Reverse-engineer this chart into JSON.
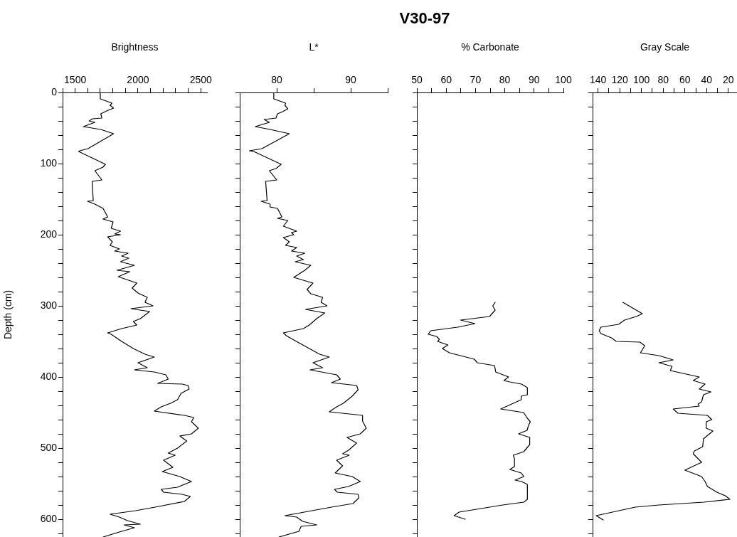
{
  "chart_data": [
    {
      "type": "line",
      "xlabel": "Brightness",
      "ylabel": "Depth (cm)",
      "xlim": [
        1400,
        2550
      ],
      "xticks": [
        {
          "value": 1400,
          "label": null
        },
        1500,
        {
          "value": 1600,
          "label": null
        },
        {
          "value": 1700,
          "label": null
        },
        {
          "value": 1800,
          "label": null
        },
        {
          "value": 1900,
          "label": null
        },
        2000,
        {
          "value": 2100,
          "label": null
        },
        {
          "value": 2200,
          "label": null
        },
        {
          "value": 2300,
          "label": null
        },
        {
          "value": 2400,
          "label": null
        },
        2500
      ],
      "ylim": [
        625,
        0
      ],
      "yticks": [
        0,
        {
          "value": 20,
          "label": null
        },
        {
          "value": 40,
          "label": null
        },
        {
          "value": 60,
          "label": null
        },
        {
          "value": 80,
          "label": null
        },
        100,
        {
          "value": 120,
          "label": null
        },
        {
          "value": 140,
          "label": null
        },
        {
          "value": 160,
          "label": null
        },
        {
          "value": 180,
          "label": null
        },
        200,
        {
          "value": 220,
          "label": null
        },
        {
          "value": 240,
          "label": null
        },
        {
          "value": 260,
          "label": null
        },
        {
          "value": 280,
          "label": null
        },
        300,
        {
          "value": 320,
          "label": null
        },
        {
          "value": 340,
          "label": null
        },
        {
          "value": 360,
          "label": null
        },
        {
          "value": 380,
          "label": null
        },
        400,
        {
          "value": 420,
          "label": null
        },
        {
          "value": 440,
          "label": null
        },
        {
          "value": 460,
          "label": null
        },
        {
          "value": 480,
          "label": null
        },
        500,
        {
          "value": 520,
          "label": null
        },
        {
          "value": 540,
          "label": null
        },
        {
          "value": 560,
          "label": null
        },
        {
          "value": 580,
          "label": null
        },
        600,
        {
          "value": 620,
          "label": null
        }
      ],
      "series": [
        {
          "color": "#000000",
          "x": [
            1700,
            1700,
            1793,
            1778,
            1806,
            1763,
            1704,
            1713,
            1639,
            1611,
            1657,
            1565,
            1704,
            1806,
            1602,
            1537,
            1528,
            1741,
            1722,
            1657,
            1713,
            1635,
            1644,
            1598,
            1657,
            1722,
            1759,
            1722,
            1802,
            1787,
            1861,
            1815,
            1861,
            1759,
            1796,
            1778,
            1852,
            1815,
            1922,
            1870,
            1926,
            1861,
            1972,
            1833,
            1935,
            1843,
            1991,
            1954,
            2000,
            2074,
            2056,
            2120,
            1944,
            2093,
            2019,
            1963,
            1991,
            1870,
            1759,
            1787,
            1870,
            1963,
            2056,
            2130,
            2000,
            2074,
            1972,
            2130,
            2222,
            2241,
            2157,
            2352,
            2398,
            2407,
            2343,
            2315,
            2259,
            2185,
            2130,
            2370,
            2444,
            2426,
            2481,
            2426,
            2333,
            2389,
            2315,
            2241,
            2296,
            2204,
            2278,
            2194,
            2333,
            2426,
            2315,
            2185,
            2204,
            2352,
            2417,
            2370,
            2167,
            1981,
            1778,
            1852,
            1917,
            2019,
            1889,
            1972,
            1870,
            1722
          ],
          "values": [
            1,
            9,
            15,
            18,
            22,
            25,
            30,
            36,
            37,
            40,
            42,
            48,
            52,
            58,
            79,
            82,
            83,
            101,
            105,
            110,
            123,
            125,
            152,
            153,
            157,
            163,
            175,
            178,
            182,
            191,
            195,
            199,
            200,
            203,
            210,
            215,
            220,
            223,
            226,
            230,
            233,
            238,
            243,
            250,
            252,
            259,
            268,
            275,
            282,
            288,
            295,
            300,
            304,
            308,
            318,
            322,
            327,
            332,
            338,
            340,
            350,
            360,
            368,
            372,
            380,
            387,
            390,
            393,
            397,
            403,
            409,
            410,
            412,
            417,
            423,
            432,
            437,
            442,
            448,
            454,
            457,
            463,
            472,
            480,
            483,
            490,
            500,
            507,
            510,
            517,
            527,
            533,
            540,
            547,
            555,
            558,
            562,
            565,
            568,
            575,
            582,
            588,
            593,
            597,
            602,
            607,
            608,
            612,
            617,
            625
          ]
        }
      ]
    },
    {
      "type": "line",
      "xlabel": "L*",
      "xlim": [
        75,
        95
      ],
      "xticks": [
        80,
        {
          "value": 85,
          "label": null
        },
        90,
        {
          "value": 95,
          "label": null
        }
      ],
      "ylim": [
        625,
        0
      ],
      "tick_labels": "x",
      "yticks": [
        0,
        {
          "value": 20,
          "label": null
        },
        {
          "value": 40,
          "label": null
        },
        {
          "value": 60,
          "label": null
        },
        {
          "value": 80,
          "label": null
        },
        100,
        {
          "value": 120,
          "label": null
        },
        {
          "value": 140,
          "label": null
        },
        {
          "value": 160,
          "label": null
        },
        {
          "value": 180,
          "label": null
        },
        200,
        {
          "value": 220,
          "label": null
        },
        {
          "value": 240,
          "label": null
        },
        {
          "value": 260,
          "label": null
        },
        {
          "value": 280,
          "label": null
        },
        300,
        {
          "value": 320,
          "label": null
        },
        {
          "value": 340,
          "label": null
        },
        {
          "value": 360,
          "label": null
        },
        {
          "value": 380,
          "label": null
        },
        400,
        {
          "value": 420,
          "label": null
        },
        {
          "value": 440,
          "label": null
        },
        {
          "value": 460,
          "label": null
        },
        {
          "value": 480,
          "label": null
        },
        500,
        {
          "value": 520,
          "label": null
        },
        {
          "value": 540,
          "label": null
        },
        {
          "value": 560,
          "label": null
        },
        {
          "value": 580,
          "label": null
        },
        600,
        {
          "value": 620,
          "label": null
        }
      ],
      "series": [
        {
          "color": "#000000",
          "x": [
            79.6,
            79.6,
            81.2,
            81.1,
            81.5,
            80.8,
            80.1,
            79.9,
            78.3,
            79.0,
            77.1,
            79.1,
            81.7,
            78.0,
            76.3,
            76.9,
            80.6,
            79.9,
            79.0,
            80.0,
            78.5,
            78.7,
            77.9,
            79.1,
            79.1,
            80.1,
            80.7,
            80.1,
            81.5,
            80.9,
            82.7,
            82.0,
            82.3,
            80.9,
            81.7,
            81.2,
            82.7,
            82.0,
            83.8,
            82.7,
            83.6,
            82.5,
            84.6,
            83.8,
            82.3,
            84.9,
            84.1,
            84.6,
            86.2,
            86.0,
            86.8,
            83.9,
            86.5,
            85.4,
            84.4,
            83.6,
            80.9,
            81.3,
            83.0,
            84.4,
            85.8,
            87.1,
            84.9,
            86.2,
            84.5,
            88.1,
            88.6,
            87.4,
            90.8,
            91.0,
            90.2,
            89.0,
            88.1,
            87.1,
            91.6,
            91.6,
            92.1,
            91.3,
            89.5,
            90.8,
            89.7,
            88.9,
            89.8,
            88.1,
            88.9,
            87.9,
            90.2,
            91.3,
            89.7,
            87.8,
            88.2,
            91.0,
            91.1,
            90.3,
            87.4,
            81.1,
            82.7,
            83.5,
            85.4,
            83.3,
            83.0,
            80.3
          ],
          "values": [
            1,
            9,
            15,
            18,
            23,
            27,
            30,
            36,
            38,
            42,
            48,
            52,
            58,
            79,
            82,
            83,
            101,
            107,
            110,
            123,
            125,
            152,
            153,
            157,
            161,
            163,
            175,
            177,
            180,
            188,
            195,
            197,
            200,
            204,
            210,
            215,
            218,
            223,
            226,
            230,
            235,
            238,
            243,
            250,
            260,
            268,
            277,
            283,
            288,
            295,
            300,
            305,
            310,
            318,
            327,
            332,
            338,
            342,
            352,
            360,
            368,
            372,
            380,
            387,
            390,
            397,
            403,
            408,
            412,
            418,
            427,
            437,
            442,
            449,
            454,
            462,
            472,
            480,
            485,
            493,
            503,
            508,
            510,
            517,
            525,
            535,
            540,
            547,
            554,
            558,
            562,
            565,
            570,
            578,
            583,
            595,
            597,
            603,
            608,
            610,
            617,
            625
          ]
        }
      ]
    },
    {
      "type": "line",
      "title": "V30-97",
      "xlabel": "% Carbonate",
      "xlim": [
        50,
        100
      ],
      "xticks": [
        50,
        {
          "value": 55,
          "label": null
        },
        60,
        {
          "value": 65,
          "label": null
        },
        70,
        {
          "value": 75,
          "label": null
        },
        80,
        {
          "value": 85,
          "label": null
        },
        90,
        {
          "value": 95,
          "label": null
        },
        100
      ],
      "ylim": [
        625,
        0
      ],
      "tick_labels": "x",
      "yticks": [
        0,
        {
          "value": 20,
          "label": null
        },
        {
          "value": 40,
          "label": null
        },
        {
          "value": 60,
          "label": null
        },
        {
          "value": 80,
          "label": null
        },
        100,
        {
          "value": 120,
          "label": null
        },
        {
          "value": 140,
          "label": null
        },
        {
          "value": 160,
          "label": null
        },
        {
          "value": 180,
          "label": null
        },
        200,
        {
          "value": 220,
          "label": null
        },
        {
          "value": 240,
          "label": null
        },
        {
          "value": 260,
          "label": null
        },
        {
          "value": 280,
          "label": null
        },
        300,
        {
          "value": 320,
          "label": null
        },
        {
          "value": 340,
          "label": null
        },
        {
          "value": 360,
          "label": null
        },
        {
          "value": 380,
          "label": null
        },
        400,
        {
          "value": 420,
          "label": null
        },
        {
          "value": 440,
          "label": null
        },
        {
          "value": 460,
          "label": null
        },
        {
          "value": 480,
          "label": null
        },
        500,
        {
          "value": 520,
          "label": null
        },
        {
          "value": 540,
          "label": null
        },
        {
          "value": 560,
          "label": null
        },
        {
          "value": 580,
          "label": null
        },
        600,
        {
          "value": 620,
          "label": null
        }
      ],
      "series": [
        {
          "color": "#000000",
          "x": [
            76.7,
            75.9,
            76.7,
            74.8,
            64.9,
            69.8,
            63.9,
            54.7,
            53.9,
            56.7,
            57.7,
            57.1,
            60.6,
            58.7,
            61.1,
            69.6,
            70.6,
            76.5,
            76.9,
            81.3,
            79.7,
            81.7,
            85.7,
            87.7,
            87.7,
            85.6,
            85.6,
            78.6,
            86.4,
            87.7,
            88.7,
            88.1,
            87.6,
            84.7,
            88.5,
            88.5,
            86.5,
            82.9,
            83.3,
            83.3,
            81.7,
            85.6,
            86.5,
            83.5,
            85.7,
            87.7,
            87.7,
            86.5,
            79.3,
            64.4,
            62.7,
            66.5
          ],
          "values": [
            295,
            300,
            306,
            315,
            320,
            325,
            330,
            335,
            340,
            343,
            347,
            350,
            355,
            360,
            366,
            375,
            380,
            384,
            393,
            400,
            405,
            407,
            410,
            415,
            425,
            427,
            432,
            445,
            450,
            458,
            463,
            468,
            475,
            480,
            485,
            495,
            505,
            510,
            515,
            526,
            530,
            535,
            540,
            545,
            547,
            551,
            572,
            576,
            580,
            590,
            595,
            600
          ]
        }
      ]
    },
    {
      "type": "line",
      "xlabel": "Gray Scale",
      "xlim": [
        145,
        12
      ],
      "xticks": [
        140,
        {
          "value": 130,
          "label": null
        },
        120,
        {
          "value": 110,
          "label": null
        },
        100,
        {
          "value": 90,
          "label": null
        },
        80,
        {
          "value": 70,
          "label": null
        },
        60,
        {
          "value": 50,
          "label": null
        },
        40,
        {
          "value": 30,
          "label": null
        },
        20
      ],
      "ylim": [
        625,
        0
      ],
      "tick_labels": "x",
      "yticks": [
        0,
        {
          "value": 20,
          "label": null
        },
        {
          "value": 40,
          "label": null
        },
        {
          "value": 60,
          "label": null
        },
        {
          "value": 80,
          "label": null
        },
        100,
        {
          "value": 120,
          "label": null
        },
        {
          "value": 140,
          "label": null
        },
        {
          "value": 160,
          "label": null
        },
        {
          "value": 180,
          "label": null
        },
        200,
        {
          "value": 220,
          "label": null
        },
        {
          "value": 240,
          "label": null
        },
        {
          "value": 260,
          "label": null
        },
        {
          "value": 280,
          "label": null
        },
        300,
        {
          "value": 320,
          "label": null
        },
        {
          "value": 340,
          "label": null
        },
        {
          "value": 360,
          "label": null
        },
        {
          "value": 380,
          "label": null
        },
        400,
        {
          "value": 420,
          "label": null
        },
        {
          "value": 440,
          "label": null
        },
        {
          "value": 460,
          "label": null
        },
        {
          "value": 480,
          "label": null
        },
        500,
        {
          "value": 520,
          "label": null
        },
        {
          "value": 540,
          "label": null
        },
        {
          "value": 560,
          "label": null
        },
        {
          "value": 580,
          "label": null
        },
        600,
        {
          "value": 620,
          "label": null
        }
      ],
      "series": [
        {
          "color": "#000000",
          "x": [
            117.1,
            99.2,
            104.7,
            115.6,
            121.0,
            137.4,
            138.9,
            137.4,
            127.6,
            123.2,
            101.4,
            97.0,
            100.9,
            83.9,
            70.8,
            83.9,
            71.9,
            73.4,
            46.8,
            52.3,
            41.4,
            46.8,
            35.9,
            42.9,
            44.6,
            47.9,
            46.8,
            70.8,
            66.4,
            39.2,
            35.3,
            40.3,
            40.3,
            34.2,
            42.9,
            43.6,
            51.2,
            52.3,
            44.6,
            60.0,
            44.6,
            41.4,
            39.2,
            30.5,
            22.8,
            18.5,
            42.5,
            83.9,
            105.7,
            141.7,
            135.2
          ],
          "values": [
            295,
            311,
            315,
            320,
            326,
            330,
            335,
            339,
            345,
            350,
            351,
            356,
            366,
            370,
            376,
            380,
            385,
            391,
            400,
            405,
            410,
            417,
            421,
            425,
            435,
            438,
            441,
            445,
            451,
            454,
            460,
            463,
            472,
            476,
            487,
            498,
            504,
            508,
            520,
            531,
            540,
            547,
            554,
            562,
            567,
            572,
            576,
            580,
            583,
            595,
            601
          ]
        }
      ]
    }
  ]
}
